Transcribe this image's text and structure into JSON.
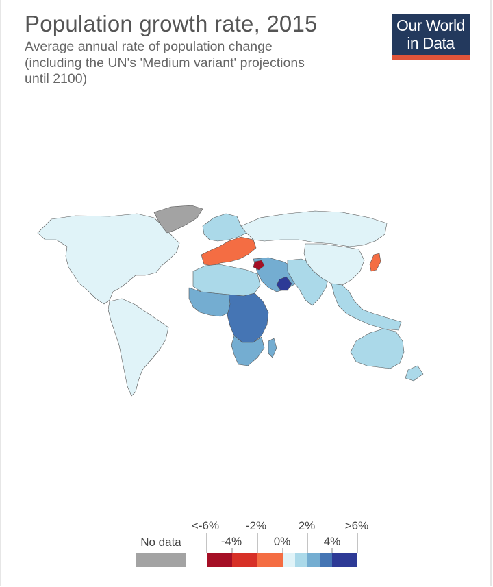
{
  "header": {
    "title": "Population growth rate, 2015",
    "subtitle_lines": [
      "Average annual rate of population change",
      "(including the UN's 'Medium variant' projections",
      "until 2100)"
    ]
  },
  "logo": {
    "line1": "Our World",
    "line2": "in Data",
    "bg_color": "#23395d",
    "accent_color": "#e0543a"
  },
  "legend": {
    "no_data_label": "No data",
    "no_data_color": "#a3a3a3",
    "bins": [
      {
        "color": "#a50f25"
      },
      {
        "color": "#d73027"
      },
      {
        "color": "#f46d43"
      },
      {
        "color": "#e0f3f8"
      },
      {
        "color": "#abd9e9"
      },
      {
        "color": "#74add1"
      },
      {
        "color": "#4575b4"
      },
      {
        "color": "#2d3a96"
      }
    ],
    "upper_labels": [
      "<-6%",
      "-2%",
      "2%",
      ">6%"
    ],
    "lower_labels": [
      "-4%",
      "0%",
      "4%"
    ]
  },
  "map": {
    "regions": [
      {
        "name": "North America",
        "color": "#e0f3f8"
      },
      {
        "name": "Greenland",
        "color": "#a3a3a3"
      },
      {
        "name": "South America",
        "color": "#e0f3f8"
      },
      {
        "name": "Europe",
        "color": "#abd9e9"
      },
      {
        "name": "Southern and Eastern Europe",
        "color": "#f46d43"
      },
      {
        "name": "Russia",
        "color": "#e0f3f8"
      },
      {
        "name": "Middle East",
        "color": "#74add1"
      },
      {
        "name": "Syria",
        "color": "#a50f25"
      },
      {
        "name": "Oman",
        "color": "#2d3a96"
      },
      {
        "name": "North Africa",
        "color": "#abd9e9"
      },
      {
        "name": "West Africa",
        "color": "#74add1"
      },
      {
        "name": "Central Africa",
        "color": "#4575b4"
      },
      {
        "name": "Southern Africa",
        "color": "#74add1"
      },
      {
        "name": "South Asia",
        "color": "#abd9e9"
      },
      {
        "name": "China",
        "color": "#e0f3f8"
      },
      {
        "name": "Japan",
        "color": "#f46d43"
      },
      {
        "name": "Southeast Asia",
        "color": "#abd9e9"
      },
      {
        "name": "Australia",
        "color": "#abd9e9"
      }
    ]
  }
}
